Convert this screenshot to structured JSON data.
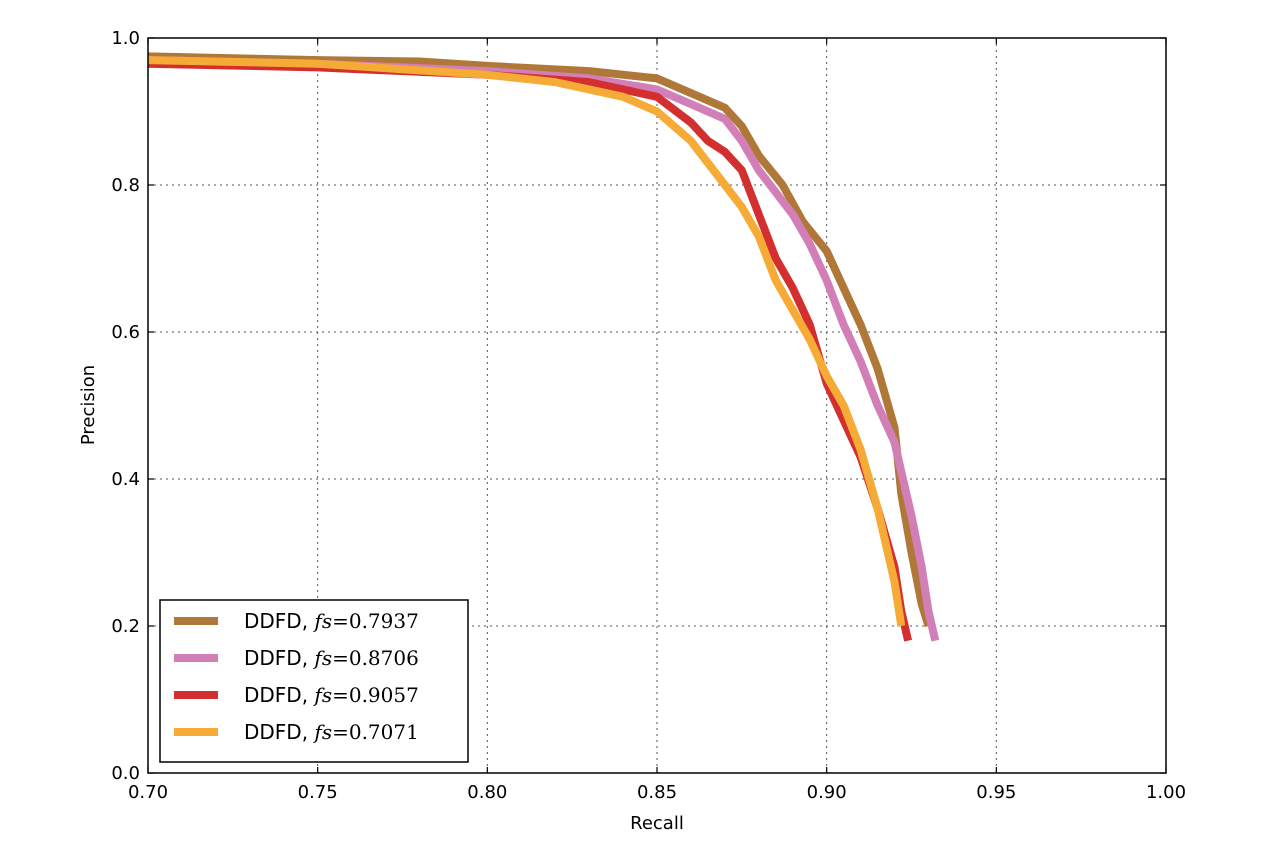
{
  "chart_data": {
    "type": "line",
    "xlabel": "Recall",
    "ylabel": "Precision",
    "xlim": [
      0.7,
      1.0
    ],
    "ylim": [
      0.0,
      1.0
    ],
    "xticks": [
      "0.70",
      "0.75",
      "0.80",
      "0.85",
      "0.90",
      "0.95",
      "1.00"
    ],
    "yticks": [
      "0.0",
      "0.2",
      "0.4",
      "0.6",
      "0.8",
      "1.0"
    ],
    "grid": true,
    "legend_position": "lower-left",
    "series": [
      {
        "name": "DDFD, fs=0.7937",
        "label_prefix": "DDFD, ",
        "label_math": "fs",
        "label_value": "=0.7937",
        "color": "#b07838",
        "x": [
          0.7,
          0.75,
          0.78,
          0.8,
          0.83,
          0.85,
          0.86,
          0.87,
          0.875,
          0.88,
          0.887,
          0.893,
          0.9,
          0.905,
          0.91,
          0.915,
          0.92,
          0.922,
          0.925,
          0.928,
          0.93
        ],
        "y": [
          0.975,
          0.97,
          0.968,
          0.962,
          0.955,
          0.945,
          0.925,
          0.905,
          0.88,
          0.84,
          0.8,
          0.75,
          0.71,
          0.66,
          0.61,
          0.55,
          0.47,
          0.38,
          0.3,
          0.23,
          0.2
        ]
      },
      {
        "name": "DDFD, fs=0.8706",
        "label_prefix": "DDFD, ",
        "label_math": "fs",
        "label_value": "=0.8706",
        "color": "#d27fb8",
        "x": [
          0.7,
          0.75,
          0.8,
          0.83,
          0.85,
          0.86,
          0.87,
          0.875,
          0.88,
          0.885,
          0.89,
          0.895,
          0.9,
          0.905,
          0.91,
          0.915,
          0.92,
          0.925,
          0.928,
          0.93,
          0.932
        ],
        "y": [
          0.97,
          0.965,
          0.955,
          0.945,
          0.93,
          0.91,
          0.89,
          0.86,
          0.82,
          0.79,
          0.76,
          0.72,
          0.67,
          0.61,
          0.56,
          0.5,
          0.45,
          0.35,
          0.28,
          0.22,
          0.18
        ]
      },
      {
        "name": "DDFD, fs=0.9057",
        "label_prefix": "DDFD, ",
        "label_math": "fs",
        "label_value": "=0.9057",
        "color": "#d42f2f",
        "x": [
          0.7,
          0.75,
          0.8,
          0.83,
          0.85,
          0.86,
          0.865,
          0.87,
          0.875,
          0.88,
          0.885,
          0.89,
          0.895,
          0.9,
          0.905,
          0.91,
          0.915,
          0.92,
          0.922,
          0.924
        ],
        "y": [
          0.965,
          0.96,
          0.95,
          0.94,
          0.92,
          0.885,
          0.86,
          0.845,
          0.82,
          0.76,
          0.7,
          0.66,
          0.61,
          0.53,
          0.48,
          0.43,
          0.36,
          0.28,
          0.22,
          0.18
        ]
      },
      {
        "name": "DDFD, fs=0.7071",
        "label_prefix": "DDFD, ",
        "label_math": "fs",
        "label_value": "=0.7071",
        "color": "#f5ab35",
        "x": [
          0.7,
          0.75,
          0.8,
          0.82,
          0.84,
          0.85,
          0.86,
          0.865,
          0.87,
          0.875,
          0.88,
          0.885,
          0.89,
          0.895,
          0.9,
          0.905,
          0.91,
          0.915,
          0.92,
          0.922
        ],
        "y": [
          0.97,
          0.965,
          0.95,
          0.94,
          0.92,
          0.9,
          0.86,
          0.83,
          0.8,
          0.77,
          0.73,
          0.67,
          0.63,
          0.59,
          0.54,
          0.5,
          0.44,
          0.36,
          0.26,
          0.2
        ]
      }
    ]
  }
}
